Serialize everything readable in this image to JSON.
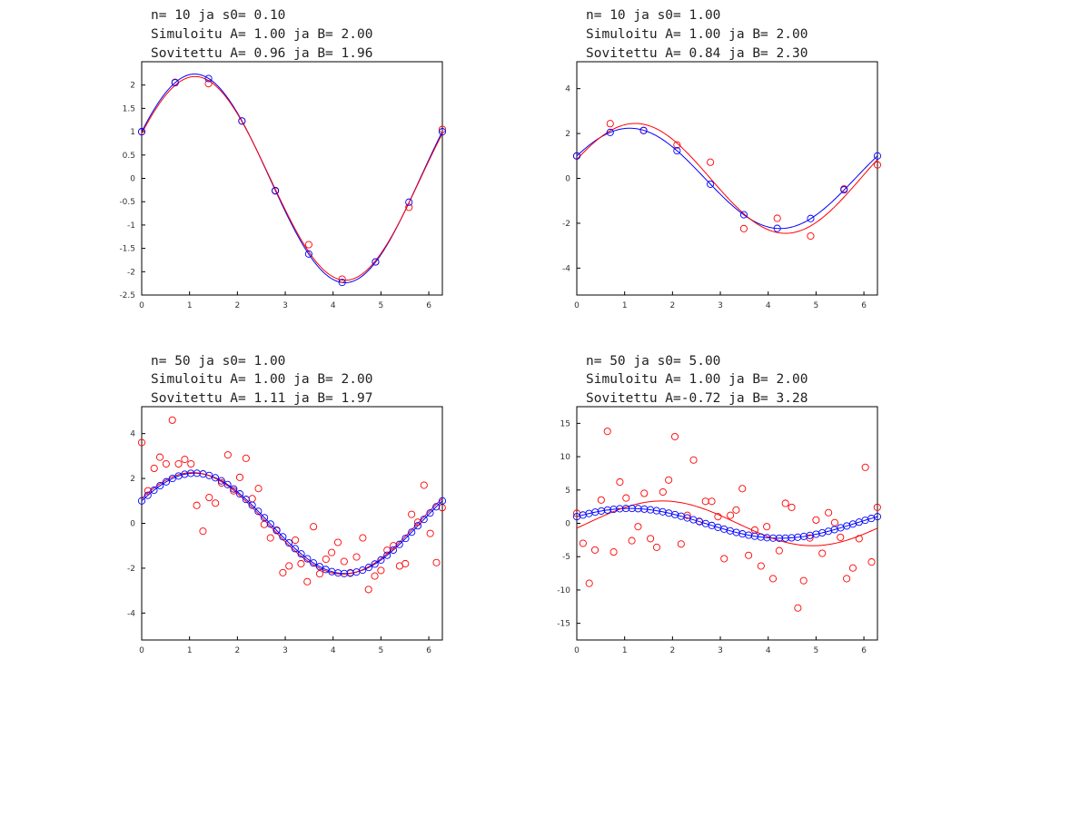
{
  "chart_data": [
    {
      "type": "scatter",
      "title_lines": [
        "n= 10 ja s0= 0.10",
        "Simuloitu A= 1.00 ja B= 2.00",
        "Sovitettu A= 0.96 ja B= 1.96"
      ],
      "xlim": [
        0,
        6.2832
      ],
      "ylim": [
        -2.5,
        2.5
      ],
      "xticks": [
        0,
        1,
        2,
        3,
        4,
        5,
        6
      ],
      "yticks": [
        -2.5,
        -2,
        -1.5,
        -1,
        -0.5,
        0,
        0.5,
        1,
        1.5,
        2
      ],
      "ytick_labels": [
        "-2.5",
        "-2",
        "-1.5",
        "-1",
        "-0.5",
        "0",
        "0.5",
        "1",
        "1.5",
        "2"
      ],
      "true_model": {
        "A": 1.0,
        "B": 2.0,
        "color": "#0000ff"
      },
      "fitted_model": {
        "A": 0.96,
        "B": 1.96,
        "color": "#ff0000"
      },
      "series": [
        {
          "marker": "circle",
          "color": "#ff0000",
          "x": [
            0,
            0.6981,
            1.3963,
            2.0944,
            2.7925,
            3.4907,
            4.1888,
            4.8869,
            5.5851,
            6.2832
          ],
          "y": [
            1.0,
            2.06,
            2.03,
            1.23,
            -0.27,
            -1.42,
            -2.16,
            -1.79,
            -0.62,
            1.05
          ]
        },
        {
          "marker": "circle",
          "color": "#0000ff",
          "x": [
            0,
            0.6981,
            1.3963,
            2.0944,
            2.7925,
            3.4907,
            4.1888,
            4.8869,
            5.5851,
            6.2832
          ],
          "y": [
            1.0,
            2.05,
            2.14,
            1.23,
            -0.26,
            -1.62,
            -2.23,
            -1.79,
            -0.51,
            1.0
          ]
        }
      ]
    },
    {
      "type": "scatter",
      "title_lines": [
        "n= 10 ja s0= 1.00",
        "Simuloitu A= 1.00 ja B= 2.00",
        "Sovitettu A= 0.84 ja B= 2.30"
      ],
      "xlim": [
        0,
        6.2832
      ],
      "ylim": [
        -5.2,
        5.2
      ],
      "xticks": [
        0,
        1,
        2,
        3,
        4,
        5,
        6
      ],
      "yticks": [
        -4,
        -2,
        0,
        2,
        4
      ],
      "ytick_labels": [
        "-4",
        "-2",
        "0",
        "2",
        "4"
      ],
      "true_model": {
        "A": 1.0,
        "B": 2.0,
        "color": "#0000ff"
      },
      "fitted_model": {
        "A": 0.84,
        "B": 2.3,
        "color": "#ff0000"
      },
      "series": [
        {
          "marker": "circle",
          "color": "#ff0000",
          "x": [
            0,
            0.6981,
            1.3963,
            2.0944,
            2.7925,
            3.4907,
            4.1888,
            4.8869,
            5.5851,
            6.2832
          ],
          "y": [
            1.0,
            2.44,
            2.13,
            1.49,
            0.72,
            -2.24,
            -1.78,
            -2.57,
            -0.47,
            0.6
          ]
        },
        {
          "marker": "circle",
          "color": "#0000ff",
          "x": [
            0,
            0.6981,
            1.3963,
            2.0944,
            2.7925,
            3.4907,
            4.1888,
            4.8869,
            5.5851,
            6.2832
          ],
          "y": [
            1.0,
            2.05,
            2.14,
            1.23,
            -0.26,
            -1.62,
            -2.23,
            -1.79,
            -0.51,
            1.0
          ]
        }
      ]
    },
    {
      "type": "scatter",
      "title_lines": [
        "n= 50 ja s0= 1.00",
        "Simuloitu A= 1.00 ja B= 2.00",
        "Sovitettu A= 1.11 ja B= 1.97"
      ],
      "xlim": [
        0,
        6.2832
      ],
      "ylim": [
        -5.2,
        5.2
      ],
      "xticks": [
        0,
        1,
        2,
        3,
        4,
        5,
        6
      ],
      "yticks": [
        -4,
        -2,
        0,
        2,
        4
      ],
      "ytick_labels": [
        "-4",
        "-2",
        "0",
        "2",
        "4"
      ],
      "true_model": {
        "A": 1.0,
        "B": 2.0,
        "color": "#0000ff"
      },
      "fitted_model": {
        "A": 1.11,
        "B": 1.97,
        "color": "#ff0000"
      },
      "series": [
        {
          "marker": "circle",
          "color": "#ff0000",
          "x": [
            0.0,
            0.13,
            0.26,
            0.38,
            0.51,
            0.64,
            0.77,
            0.9,
            1.03,
            1.15,
            1.28,
            1.41,
            1.54,
            1.67,
            1.8,
            1.92,
            2.05,
            2.18,
            2.31,
            2.44,
            2.56,
            2.69,
            2.82,
            2.95,
            3.08,
            3.21,
            3.33,
            3.46,
            3.59,
            3.72,
            3.85,
            3.97,
            4.1,
            4.23,
            4.36,
            4.49,
            4.62,
            4.74,
            4.87,
            5.0,
            5.13,
            5.26,
            5.39,
            5.51,
            5.64,
            5.77,
            5.9,
            6.03,
            6.16,
            6.28
          ],
          "y": [
            3.6,
            1.45,
            2.45,
            2.95,
            2.65,
            4.6,
            2.65,
            2.85,
            2.65,
            0.8,
            -0.35,
            1.15,
            0.9,
            1.8,
            3.05,
            1.45,
            2.05,
            2.9,
            1.1,
            1.55,
            -0.05,
            -0.65,
            -0.3,
            -2.2,
            -1.9,
            -0.75,
            -1.8,
            -2.6,
            -0.15,
            -2.25,
            -1.6,
            -1.3,
            -0.85,
            -1.7,
            -2.2,
            -1.5,
            -0.65,
            -2.95,
            -2.35,
            -2.1,
            -1.2,
            -1.0,
            -1.9,
            -1.8,
            0.4,
            0.05,
            1.7,
            -0.45,
            -1.75,
            0.7
          ]
        },
        {
          "marker": "circle",
          "color": "#0000ff",
          "sampled_from": "true_model",
          "count": 50
        }
      ]
    },
    {
      "type": "scatter",
      "title_lines": [
        "n= 50 ja s0= 5.00",
        "Simuloitu A= 1.00 ja B= 2.00",
        "Sovitettu A=-0.72 ja B= 3.28"
      ],
      "xlim": [
        0,
        6.2832
      ],
      "ylim": [
        -17.5,
        17.5
      ],
      "xticks": [
        0,
        1,
        2,
        3,
        4,
        5,
        6
      ],
      "yticks": [
        -15,
        -10,
        -5,
        0,
        5,
        10,
        15
      ],
      "ytick_labels": [
        "-15",
        "-10",
        "-5",
        "0",
        "5",
        "10",
        "15"
      ],
      "true_model": {
        "A": 1.0,
        "B": 2.0,
        "color": "#0000ff"
      },
      "fitted_model": {
        "A": -0.72,
        "B": 3.28,
        "color": "#ff0000"
      },
      "series": [
        {
          "marker": "circle",
          "color": "#ff0000",
          "x": [
            0.0,
            0.13,
            0.26,
            0.38,
            0.51,
            0.64,
            0.77,
            0.9,
            1.03,
            1.15,
            1.28,
            1.41,
            1.54,
            1.67,
            1.8,
            1.92,
            2.05,
            2.18,
            2.31,
            2.44,
            2.56,
            2.69,
            2.82,
            2.95,
            3.08,
            3.21,
            3.33,
            3.46,
            3.59,
            3.72,
            3.85,
            3.97,
            4.1,
            4.23,
            4.36,
            4.49,
            4.62,
            4.74,
            4.87,
            5.0,
            5.13,
            5.26,
            5.39,
            5.51,
            5.64,
            5.77,
            5.9,
            6.03,
            6.16,
            6.28
          ],
          "y": [
            1.5,
            -3.0,
            -9.0,
            -4.0,
            3.5,
            13.8,
            -4.3,
            6.2,
            3.8,
            -2.6,
            -0.5,
            4.5,
            -2.3,
            -3.6,
            4.7,
            6.5,
            13.0,
            -3.1,
            1.2,
            9.5,
            0.3,
            3.3,
            3.3,
            1.0,
            -5.3,
            1.2,
            2.0,
            5.2,
            -4.8,
            -1.0,
            -6.4,
            -0.5,
            -8.3,
            -4.1,
            3.0,
            2.4,
            -12.7,
            -8.6,
            -2.2,
            0.5,
            -4.5,
            1.6,
            0.1,
            -2.1,
            -8.3,
            -6.7,
            -2.3,
            8.4,
            -5.8,
            2.4
          ]
        },
        {
          "marker": "circle",
          "color": "#0000ff",
          "sampled_from": "true_model",
          "count": 50
        }
      ]
    }
  ]
}
